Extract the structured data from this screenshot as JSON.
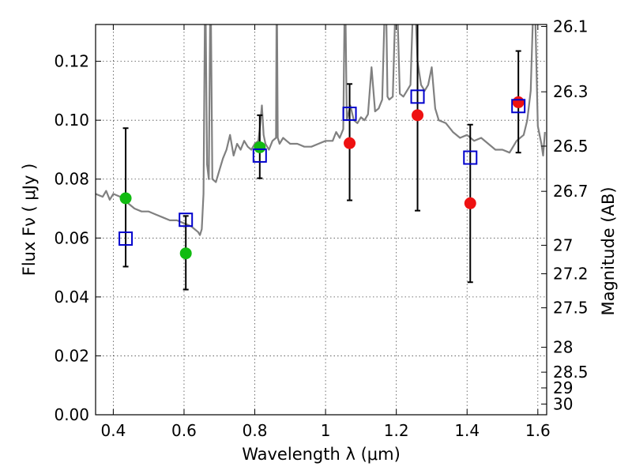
{
  "chart_data": {
    "type": "scatter",
    "xlabel": "Wavelength  λ (μm)",
    "ylabel": "Flux  Fν  ( μJy )",
    "y2label": "Magnitude (AB)",
    "xlim": [
      0.35,
      1.625
    ],
    "ylim": [
      0.0,
      0.1325
    ],
    "x_ticks": [
      0.4,
      0.6,
      0.8,
      1.0,
      1.2,
      1.4,
      1.6
    ],
    "x_tick_labels": [
      "0.4",
      "0.6",
      "0.8",
      "1",
      "1.2",
      "1.4",
      "1.6"
    ],
    "y_ticks": [
      0.0,
      0.02,
      0.04,
      0.06,
      0.08,
      0.1,
      0.12
    ],
    "y_tick_labels": [
      "0.00",
      "0.02",
      "0.04",
      "0.06",
      "0.08",
      "0.10",
      "0.12"
    ],
    "y2_ticks": [
      26.1,
      26.3,
      26.5,
      26.7,
      27,
      27.2,
      27.5,
      28,
      28.5,
      29,
      30
    ],
    "y2_tick_labels": [
      "26.1",
      "26.3",
      "26.5",
      "26.7",
      "27",
      "27.2",
      "27.5",
      "28",
      "28.5",
      "29",
      "30"
    ],
    "grid": true,
    "colors": {
      "spectrum": "#808080",
      "green_points": "#11bb11",
      "red_points": "#ee1111",
      "model_squares": "#0000cc",
      "errorbars": "#000000"
    },
    "series": [
      {
        "kind": "line",
        "points": [
          [
            0.35,
            0.075
          ],
          [
            0.37,
            0.074
          ],
          [
            0.38,
            0.076
          ],
          [
            0.39,
            0.073
          ],
          [
            0.4,
            0.075
          ],
          [
            0.42,
            0.074
          ],
          [
            0.44,
            0.072
          ],
          [
            0.46,
            0.07
          ],
          [
            0.48,
            0.069
          ],
          [
            0.5,
            0.069
          ],
          [
            0.52,
            0.068
          ],
          [
            0.54,
            0.067
          ],
          [
            0.56,
            0.066
          ],
          [
            0.58,
            0.066
          ],
          [
            0.6,
            0.065
          ],
          [
            0.62,
            0.064
          ],
          [
            0.63,
            0.063
          ],
          [
            0.64,
            0.062
          ],
          [
            0.645,
            0.061
          ],
          [
            0.65,
            0.063
          ],
          [
            0.655,
            0.075
          ],
          [
            0.66,
            0.15
          ],
          [
            0.665,
            0.085
          ],
          [
            0.67,
            0.08
          ],
          [
            0.675,
            0.15
          ],
          [
            0.68,
            0.08
          ],
          [
            0.69,
            0.079
          ],
          [
            0.7,
            0.083
          ],
          [
            0.71,
            0.087
          ],
          [
            0.72,
            0.09
          ],
          [
            0.73,
            0.095
          ],
          [
            0.74,
            0.088
          ],
          [
            0.75,
            0.092
          ],
          [
            0.76,
            0.09
          ],
          [
            0.77,
            0.093
          ],
          [
            0.78,
            0.091
          ],
          [
            0.79,
            0.09
          ],
          [
            0.8,
            0.092
          ],
          [
            0.81,
            0.093
          ],
          [
            0.815,
            0.098
          ],
          [
            0.82,
            0.105
          ],
          [
            0.825,
            0.095
          ],
          [
            0.83,
            0.092
          ],
          [
            0.84,
            0.09
          ],
          [
            0.85,
            0.093
          ],
          [
            0.86,
            0.094
          ],
          [
            0.862,
            0.15
          ],
          [
            0.865,
            0.094
          ],
          [
            0.87,
            0.092
          ],
          [
            0.88,
            0.094
          ],
          [
            0.89,
            0.093
          ],
          [
            0.9,
            0.092
          ],
          [
            0.92,
            0.092
          ],
          [
            0.94,
            0.091
          ],
          [
            0.96,
            0.091
          ],
          [
            0.98,
            0.092
          ],
          [
            1.0,
            0.093
          ],
          [
            1.02,
            0.093
          ],
          [
            1.03,
            0.096
          ],
          [
            1.04,
            0.094
          ],
          [
            1.05,
            0.097
          ],
          [
            1.055,
            0.15
          ],
          [
            1.06,
            0.1
          ],
          [
            1.07,
            0.105
          ],
          [
            1.08,
            0.1
          ],
          [
            1.09,
            0.099
          ],
          [
            1.1,
            0.101
          ],
          [
            1.11,
            0.1
          ],
          [
            1.12,
            0.102
          ],
          [
            1.13,
            0.118
          ],
          [
            1.14,
            0.103
          ],
          [
            1.15,
            0.104
          ],
          [
            1.16,
            0.107
          ],
          [
            1.17,
            0.15
          ],
          [
            1.175,
            0.108
          ],
          [
            1.18,
            0.107
          ],
          [
            1.19,
            0.108
          ],
          [
            1.2,
            0.15
          ],
          [
            1.21,
            0.109
          ],
          [
            1.22,
            0.108
          ],
          [
            1.23,
            0.11
          ],
          [
            1.24,
            0.112
          ],
          [
            1.25,
            0.15
          ],
          [
            1.26,
            0.12
          ],
          [
            1.27,
            0.112
          ],
          [
            1.28,
            0.11
          ],
          [
            1.29,
            0.112
          ],
          [
            1.3,
            0.118
          ],
          [
            1.31,
            0.104
          ],
          [
            1.32,
            0.1
          ],
          [
            1.34,
            0.099
          ],
          [
            1.36,
            0.096
          ],
          [
            1.38,
            0.094
          ],
          [
            1.4,
            0.095
          ],
          [
            1.42,
            0.093
          ],
          [
            1.44,
            0.094
          ],
          [
            1.46,
            0.092
          ],
          [
            1.48,
            0.09
          ],
          [
            1.5,
            0.09
          ],
          [
            1.52,
            0.089
          ],
          [
            1.53,
            0.091
          ],
          [
            1.54,
            0.093
          ],
          [
            1.56,
            0.095
          ],
          [
            1.57,
            0.1
          ],
          [
            1.58,
            0.11
          ],
          [
            1.59,
            0.15
          ],
          [
            1.6,
            0.098
          ],
          [
            1.61,
            0.092
          ],
          [
            1.615,
            0.088
          ],
          [
            1.62,
            0.096
          ]
        ]
      },
      {
        "kind": "observed_green",
        "points": [
          [
            0.435,
            0.0735
          ],
          [
            0.605,
            0.0548
          ],
          [
            0.814,
            0.0908
          ]
        ]
      },
      {
        "kind": "observed_red",
        "points": [
          [
            1.068,
            0.0922
          ],
          [
            1.26,
            0.1017
          ],
          [
            1.409,
            0.0718
          ],
          [
            1.545,
            0.1061
          ]
        ]
      },
      {
        "kind": "model_squares",
        "points": [
          [
            0.435,
            0.0598
          ],
          [
            0.605,
            0.0662
          ],
          [
            0.814,
            0.088
          ],
          [
            1.068,
            0.1022
          ],
          [
            1.26,
            0.108
          ],
          [
            1.409,
            0.0873
          ],
          [
            1.545,
            0.1048
          ]
        ]
      },
      {
        "kind": "errorbars",
        "bars": [
          [
            0.435,
            0.0503,
            0.0973
          ],
          [
            0.605,
            0.0425,
            0.0675
          ],
          [
            0.814,
            0.0803,
            0.1017
          ],
          [
            1.068,
            0.0728,
            0.1123
          ],
          [
            1.26,
            0.0693,
            0.1345
          ],
          [
            1.409,
            0.045,
            0.0985
          ],
          [
            1.545,
            0.089,
            0.1235
          ]
        ]
      }
    ]
  }
}
